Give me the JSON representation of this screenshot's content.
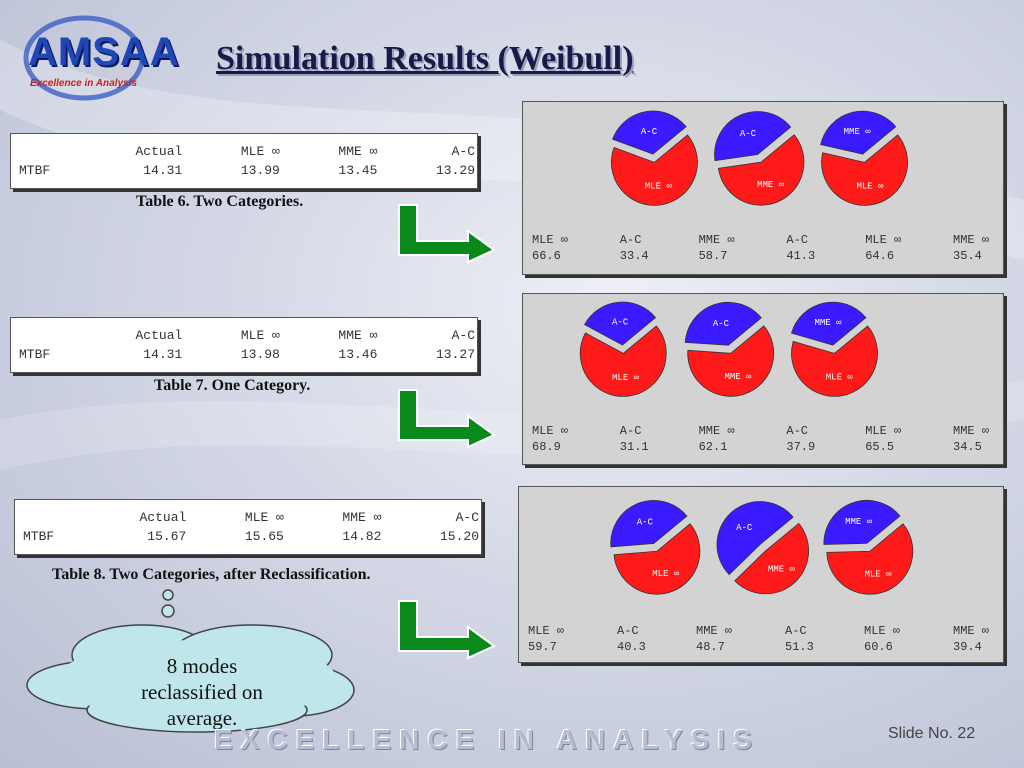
{
  "slide": {
    "logo": "AMSAA",
    "logo_tagline": "Excellence in Analysis",
    "title": "Simulation Results (Weibull)",
    "footer": "EXCELLENCE IN ANALYSIS",
    "slide_number": "Slide No. 22",
    "callout": "8 modes reclassified on average."
  },
  "colors": {
    "mle_red": "#ff1a1a",
    "ac_blue": "#3a1aff",
    "arrow_green": "#0a8a1a",
    "cloud_fill": "#bfe6ea"
  },
  "chart_data": [
    {
      "type": "table",
      "caption": "Table 6. Two Categories.",
      "columns": [
        "",
        "Actual",
        "MLE ∞",
        "MME ∞",
        "A-C"
      ],
      "rows": [
        [
          "MTBF",
          "14.31",
          "13.99",
          "13.45",
          "13.29"
        ]
      ],
      "pies": [
        {
          "type": "pie",
          "labels": [
            "MLE ∞",
            "A-C"
          ],
          "values": [
            66.6,
            33.4
          ]
        },
        {
          "type": "pie",
          "labels": [
            "MME ∞",
            "A-C"
          ],
          "values": [
            58.7,
            41.3
          ]
        },
        {
          "type": "pie",
          "labels": [
            "MLE ∞",
            "MME ∞"
          ],
          "values": [
            64.6,
            35.4
          ]
        }
      ],
      "pct_labels": [
        "MLE ∞",
        "A-C",
        "MME ∞",
        "A-C",
        "MLE ∞",
        "MME ∞"
      ],
      "pct_values": [
        "66.6",
        "33.4",
        "58.7",
        "41.3",
        "64.6",
        "35.4"
      ]
    },
    {
      "type": "table",
      "caption": "Table 7. One Category.",
      "columns": [
        "",
        "Actual",
        "MLE ∞",
        "MME ∞",
        "A-C"
      ],
      "rows": [
        [
          "MTBF",
          "14.31",
          "13.98",
          "13.46",
          "13.27"
        ]
      ],
      "pies": [
        {
          "type": "pie",
          "labels": [
            "MLE ∞",
            "A-C"
          ],
          "values": [
            68.9,
            31.1
          ]
        },
        {
          "type": "pie",
          "labels": [
            "MME ∞",
            "A-C"
          ],
          "values": [
            62.1,
            37.9
          ]
        },
        {
          "type": "pie",
          "labels": [
            "MLE ∞",
            "MME ∞"
          ],
          "values": [
            65.5,
            34.5
          ]
        }
      ],
      "pct_labels": [
        "MLE ∞",
        "A-C",
        "MME ∞",
        "A-C",
        "MLE ∞",
        "MME ∞"
      ],
      "pct_values": [
        "68.9",
        "31.1",
        "62.1",
        "37.9",
        "65.5",
        "34.5"
      ]
    },
    {
      "type": "table",
      "caption": "Table 8. Two Categories, after Reclassification.",
      "columns": [
        "",
        "Actual",
        "MLE ∞",
        "MME ∞",
        "A-C"
      ],
      "rows": [
        [
          "MTBF",
          "15.67",
          "15.65",
          "14.82",
          "15.20"
        ]
      ],
      "pies": [
        {
          "type": "pie",
          "labels": [
            "MLE ∞",
            "A-C"
          ],
          "values": [
            59.7,
            40.3
          ]
        },
        {
          "type": "pie",
          "labels": [
            "MME ∞",
            "A-C"
          ],
          "values": [
            48.7,
            51.3
          ]
        },
        {
          "type": "pie",
          "labels": [
            "MLE ∞",
            "MME ∞"
          ],
          "values": [
            60.6,
            39.4
          ]
        }
      ],
      "pct_labels": [
        "MLE ∞",
        "A-C",
        "MME ∞",
        "A-C",
        "MLE ∞",
        "MME ∞"
      ],
      "pct_values": [
        "59.7",
        "40.3",
        "48.7",
        "51.3",
        "60.6",
        "39.4"
      ]
    }
  ]
}
